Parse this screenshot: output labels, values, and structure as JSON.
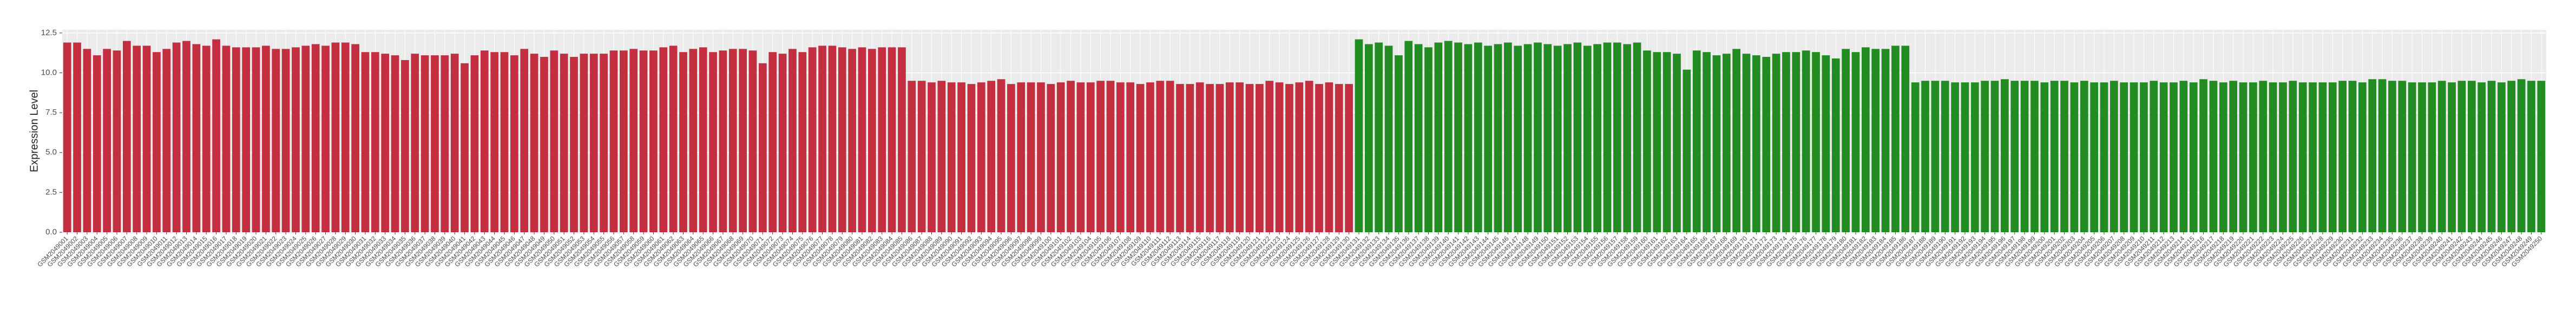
{
  "chart_data": {
    "type": "bar",
    "y_label": "Expression Level",
    "ylim": [
      0,
      12.7
    ],
    "yticks": [
      {
        "value": 0,
        "label": "0.0"
      },
      2.5,
      {
        "value": 5,
        "label": "5.0"
      },
      7.5,
      {
        "value": 10,
        "label": "10.0"
      },
      12.5
    ],
    "grid": true,
    "categories": [
      "GSM2049001",
      "GSM2049002",
      "GSM2049003",
      "GSM2049004",
      "GSM2049005",
      "GSM2049006",
      "GSM2049007",
      "GSM2049008",
      "GSM2049009",
      "GSM2049010",
      "GSM2049011",
      "GSM2049012",
      "GSM2049013",
      "GSM2049014",
      "GSM2049015",
      "GSM2049016",
      "GSM2049017",
      "GSM2049018",
      "GSM2049019",
      "GSM2049020",
      "GSM2049021",
      "GSM2049022",
      "GSM2049023",
      "GSM2049024",
      "GSM2049025",
      "GSM2049026",
      "GSM2049027",
      "GSM2049028",
      "GSM2049029",
      "GSM2049030",
      "GSM2049031",
      "GSM2049032",
      "GSM2049033",
      "GSM2049034",
      "GSM2049035",
      "GSM2049036",
      "GSM2049037",
      "GSM2049038",
      "GSM2049039",
      "GSM2049040",
      "GSM2049041",
      "GSM2049042",
      "GSM2049043",
      "GSM2049044",
      "GSM2049045",
      "GSM2049046",
      "GSM2049047",
      "GSM2049048",
      "GSM2049049",
      "GSM2049050",
      "GSM2049051",
      "GSM2049052",
      "GSM2049053",
      "GSM2049054",
      "GSM2049055",
      "GSM2049056",
      "GSM2049057",
      "GSM2049058",
      "GSM2049059",
      "GSM2049060",
      "GSM2049061",
      "GSM2049062",
      "GSM2049063",
      "GSM2049064",
      "GSM2049065",
      "GSM2049066",
      "GSM2049067",
      "GSM2049068",
      "GSM2049069",
      "GSM2049070",
      "GSM2049071",
      "GSM2049072",
      "GSM2049073",
      "GSM2049074",
      "GSM2049075",
      "GSM2049076",
      "GSM2049077",
      "GSM2049078",
      "GSM2049079",
      "GSM2049080",
      "GSM2049081",
      "GSM2049082",
      "GSM2049083",
      "GSM2049084",
      "GSM2049085",
      "GSM2049086",
      "GSM2049087",
      "GSM2049088",
      "GSM2049089",
      "GSM2049090",
      "GSM2049091",
      "GSM2049092",
      "GSM2049093",
      "GSM2049094",
      "GSM2049095",
      "GSM2049096",
      "GSM2049097",
      "GSM2049098",
      "GSM2049099",
      "GSM2049100",
      "GSM2049101",
      "GSM2049102",
      "GSM2049103",
      "GSM2049104",
      "GSM2049105",
      "GSM2049106",
      "GSM2049107",
      "GSM2049108",
      "GSM2049109",
      "GSM2049110",
      "GSM2049111",
      "GSM2049112",
      "GSM2049113",
      "GSM2049114",
      "GSM2049115",
      "GSM2049116",
      "GSM2049117",
      "GSM2049118",
      "GSM2049119",
      "GSM2049120",
      "GSM2049121",
      "GSM2049122",
      "GSM2049123",
      "GSM2049124",
      "GSM2049125",
      "GSM2049126",
      "GSM2049127",
      "GSM2049128",
      "GSM2049129",
      "GSM2049130",
      "GSM2049131",
      "GSM2049132",
      "GSM2049133",
      "GSM2049134",
      "GSM2049135",
      "GSM2049136",
      "GSM2049137",
      "GSM2049138",
      "GSM2049139",
      "GSM2049140",
      "GSM2049141",
      "GSM2049142",
      "GSM2049143",
      "GSM2049144",
      "GSM2049145",
      "GSM2049146",
      "GSM2049147",
      "GSM2049148",
      "GSM2049149",
      "GSM2049150",
      "GSM2049151",
      "GSM2049152",
      "GSM2049153",
      "GSM2049154",
      "GSM2049155",
      "GSM2049156",
      "GSM2049157",
      "GSM2049158",
      "GSM2049159",
      "GSM2049160",
      "GSM2049161",
      "GSM2049162",
      "GSM2049163",
      "GSM2049164",
      "GSM2049165",
      "GSM2049166",
      "GSM2049167",
      "GSM2049168",
      "GSM2049169",
      "GSM2049170",
      "GSM2049171",
      "GSM2049172",
      "GSM2049173",
      "GSM2049174",
      "GSM2049175",
      "GSM2049176",
      "GSM2049177",
      "GSM2049178",
      "GSM2049179",
      "GSM2049180",
      "GSM2049181",
      "GSM2049182",
      "GSM2049183",
      "GSM2049184",
      "GSM2049185",
      "GSM2049186",
      "GSM2049187",
      "GSM2049188",
      "GSM2049189",
      "GSM2049190",
      "GSM2049191",
      "GSM2049192",
      "GSM2049193",
      "GSM2049194",
      "GSM2049195",
      "GSM2049196",
      "GSM2049197",
      "GSM2049198",
      "GSM2049199",
      "GSM2049200",
      "GSM2049201",
      "GSM2049202",
      "GSM2049203",
      "GSM2049204",
      "GSM2049205",
      "GSM2049206",
      "GSM2049207",
      "GSM2049208",
      "GSM2049209",
      "GSM2049210",
      "GSM2049211",
      "GSM2049212",
      "GSM2049213",
      "GSM2049214",
      "GSM2049215",
      "GSM2049216",
      "GSM2049217",
      "GSM2049218",
      "GSM2049219",
      "GSM2049220",
      "GSM2049221",
      "GSM2049222",
      "GSM2049223",
      "GSM2049224",
      "GSM2049225",
      "GSM2049226",
      "GSM2049227",
      "GSM2049228",
      "GSM2049229",
      "GSM2049230",
      "GSM2049231",
      "GSM2049232",
      "GSM2049233",
      "GSM2049234",
      "GSM2049235",
      "GSM2049236",
      "GSM2049237",
      "GSM2049238",
      "GSM2049239",
      "GSM2049240",
      "GSM2049241",
      "GSM2049242",
      "GSM2049243",
      "GSM2049244",
      "GSM2049245",
      "GSM2049246",
      "GSM2049247",
      "GSM2049248",
      "GSM2049249",
      "GSM2049250"
    ],
    "values": [
      11.9,
      11.9,
      11.5,
      11.1,
      11.5,
      11.4,
      12.0,
      11.7,
      11.7,
      11.3,
      11.5,
      11.9,
      12.0,
      11.8,
      11.7,
      12.1,
      11.7,
      11.6,
      11.6,
      11.6,
      11.7,
      11.5,
      11.5,
      11.6,
      11.7,
      11.8,
      11.7,
      11.9,
      11.9,
      11.8,
      11.3,
      11.3,
      11.2,
      11.1,
      10.8,
      11.2,
      11.1,
      11.1,
      11.1,
      11.2,
      10.6,
      11.1,
      11.4,
      11.3,
      11.3,
      11.1,
      11.5,
      11.2,
      11.0,
      11.4,
      11.2,
      11.0,
      11.2,
      11.2,
      11.2,
      11.4,
      11.4,
      11.5,
      11.4,
      11.4,
      11.6,
      11.7,
      11.3,
      11.5,
      11.6,
      11.3,
      11.4,
      11.5,
      11.5,
      11.4,
      10.6,
      11.3,
      11.2,
      11.5,
      11.3,
      11.6,
      11.7,
      11.7,
      11.6,
      11.5,
      11.6,
      11.5,
      11.6,
      11.6,
      11.6,
      9.5,
      9.5,
      9.4,
      9.5,
      9.4,
      9.4,
      9.3,
      9.4,
      9.5,
      9.6,
      9.3,
      9.4,
      9.4,
      9.4,
      9.3,
      9.4,
      9.5,
      9.4,
      9.4,
      9.5,
      9.5,
      9.4,
      9.4,
      9.3,
      9.4,
      9.5,
      9.5,
      9.3,
      9.3,
      9.4,
      9.3,
      9.3,
      9.4,
      9.4,
      9.3,
      9.3,
      9.5,
      9.4,
      9.3,
      9.4,
      9.5,
      9.3,
      9.4,
      9.3,
      9.3,
      12.1,
      11.8,
      11.9,
      11.7,
      11.1,
      12.0,
      11.8,
      11.6,
      11.9,
      12.0,
      11.9,
      11.8,
      11.9,
      11.7,
      11.8,
      11.9,
      11.7,
      11.8,
      11.9,
      11.8,
      11.7,
      11.8,
      11.9,
      11.7,
      11.8,
      11.9,
      11.9,
      11.8,
      11.9,
      11.4,
      11.3,
      11.3,
      11.2,
      10.2,
      11.4,
      11.3,
      11.1,
      11.2,
      11.5,
      11.2,
      11.1,
      11.0,
      11.2,
      11.3,
      11.3,
      11.4,
      11.3,
      11.1,
      10.9,
      11.5,
      11.3,
      11.6,
      11.5,
      11.5,
      11.7,
      11.7,
      9.4,
      9.5,
      9.5,
      9.5,
      9.4,
      9.4,
      9.4,
      9.5,
      9.5,
      9.6,
      9.5,
      9.5,
      9.5,
      9.4,
      9.5,
      9.5,
      9.4,
      9.5,
      9.4,
      9.4,
      9.5,
      9.4,
      9.4,
      9.4,
      9.5,
      9.4,
      9.4,
      9.5,
      9.4,
      9.6,
      9.5,
      9.4,
      9.5,
      9.4,
      9.4,
      9.5,
      9.4,
      9.4,
      9.5,
      9.4,
      9.4,
      9.4,
      9.4,
      9.5,
      9.5,
      9.4,
      9.6,
      9.6,
      9.5,
      9.5,
      9.4,
      9.4,
      9.4,
      9.5,
      9.4,
      9.5,
      9.5,
      9.4,
      9.5,
      9.4,
      9.5,
      9.6,
      9.5,
      9.5
    ],
    "colors": [
      "#c32f41",
      "#c32f41",
      "#c32f41",
      "#c32f41",
      "#c32f41",
      "#c32f41",
      "#c32f41",
      "#c32f41",
      "#c32f41",
      "#c32f41",
      "#c32f41",
      "#c32f41",
      "#c32f41",
      "#c32f41",
      "#c32f41",
      "#c32f41",
      "#c32f41",
      "#c32f41",
      "#c32f41",
      "#c32f41",
      "#c32f41",
      "#c32f41",
      "#c32f41",
      "#c32f41",
      "#c32f41",
      "#c32f41",
      "#c32f41",
      "#c32f41",
      "#c32f41",
      "#c32f41",
      "#c32f41",
      "#c32f41",
      "#c32f41",
      "#c32f41",
      "#c32f41",
      "#c32f41",
      "#c32f41",
      "#c32f41",
      "#c32f41",
      "#c32f41",
      "#c32f41",
      "#c32f41",
      "#c32f41",
      "#c32f41",
      "#c32f41",
      "#c32f41",
      "#c32f41",
      "#c32f41",
      "#c32f41",
      "#c32f41",
      "#c32f41",
      "#c32f41",
      "#c32f41",
      "#c32f41",
      "#c32f41",
      "#c32f41",
      "#c32f41",
      "#c32f41",
      "#c32f41",
      "#c32f41",
      "#c32f41",
      "#c32f41",
      "#c32f41",
      "#c32f41",
      "#c32f41",
      "#c32f41",
      "#c32f41",
      "#c32f41",
      "#c32f41",
      "#c32f41",
      "#c32f41",
      "#c32f41",
      "#c32f41",
      "#c32f41",
      "#c32f41",
      "#c32f41",
      "#c32f41",
      "#c32f41",
      "#c32f41",
      "#c32f41",
      "#c32f41",
      "#c32f41",
      "#c32f41",
      "#c32f41",
      "#c32f41",
      "#c32f41",
      "#c32f41",
      "#c32f41",
      "#c32f41",
      "#c32f41",
      "#c32f41",
      "#c32f41",
      "#c32f41",
      "#c32f41",
      "#c32f41",
      "#c32f41",
      "#c32f41",
      "#c32f41",
      "#c32f41",
      "#c32f41",
      "#c32f41",
      "#c32f41",
      "#c32f41",
      "#c32f41",
      "#c32f41",
      "#c32f41",
      "#c32f41",
      "#c32f41",
      "#c32f41",
      "#c32f41",
      "#c32f41",
      "#c32f41",
      "#c32f41",
      "#c32f41",
      "#c32f41",
      "#c32f41",
      "#c32f41",
      "#c32f41",
      "#c32f41",
      "#c32f41",
      "#c32f41",
      "#c32f41",
      "#c32f41",
      "#c32f41",
      "#c32f41",
      "#c32f41",
      "#c32f41",
      "#c32f41",
      "#c32f41",
      "#c32f41",
      "#228b22",
      "#228b22",
      "#228b22",
      "#228b22",
      "#228b22",
      "#228b22",
      "#228b22",
      "#228b22",
      "#228b22",
      "#228b22",
      "#228b22",
      "#228b22",
      "#228b22",
      "#228b22",
      "#228b22",
      "#228b22",
      "#228b22",
      "#228b22",
      "#228b22",
      "#228b22",
      "#228b22",
      "#228b22",
      "#228b22",
      "#228b22",
      "#228b22",
      "#228b22",
      "#228b22",
      "#228b22",
      "#228b22",
      "#228b22",
      "#228b22",
      "#228b22",
      "#228b22",
      "#228b22",
      "#228b22",
      "#228b22",
      "#228b22",
      "#228b22",
      "#228b22",
      "#228b22",
      "#228b22",
      "#228b22",
      "#228b22",
      "#228b22",
      "#228b22",
      "#228b22",
      "#228b22",
      "#228b22",
      "#228b22",
      "#228b22",
      "#228b22",
      "#228b22",
      "#228b22",
      "#228b22",
      "#228b22",
      "#228b22",
      "#228b22",
      "#228b22",
      "#228b22",
      "#228b22",
      "#228b22",
      "#228b22",
      "#228b22",
      "#228b22",
      "#228b22",
      "#228b22",
      "#228b22",
      "#228b22",
      "#228b22",
      "#228b22",
      "#228b22",
      "#228b22",
      "#228b22",
      "#228b22",
      "#228b22",
      "#228b22",
      "#228b22",
      "#228b22",
      "#228b22",
      "#228b22",
      "#228b22",
      "#228b22",
      "#228b22",
      "#228b22",
      "#228b22",
      "#228b22",
      "#228b22",
      "#228b22",
      "#228b22",
      "#228b22",
      "#228b22",
      "#228b22",
      "#228b22",
      "#228b22",
      "#228b22",
      "#228b22",
      "#228b22",
      "#228b22",
      "#228b22",
      "#228b22",
      "#228b22",
      "#228b22",
      "#228b22",
      "#228b22",
      "#228b22",
      "#228b22",
      "#228b22",
      "#228b22",
      "#228b22",
      "#228b22",
      "#228b22",
      "#228b22",
      "#228b22",
      "#228b22",
      "#228b22",
      "#228b22",
      "#228b22",
      "#228b22",
      "#228b22",
      "#228b22",
      "#228b22",
      "#228b22",
      "#228b22",
      "#228b22",
      "#228b22",
      "#228b22",
      "#228b22",
      "#228b22"
    ]
  }
}
